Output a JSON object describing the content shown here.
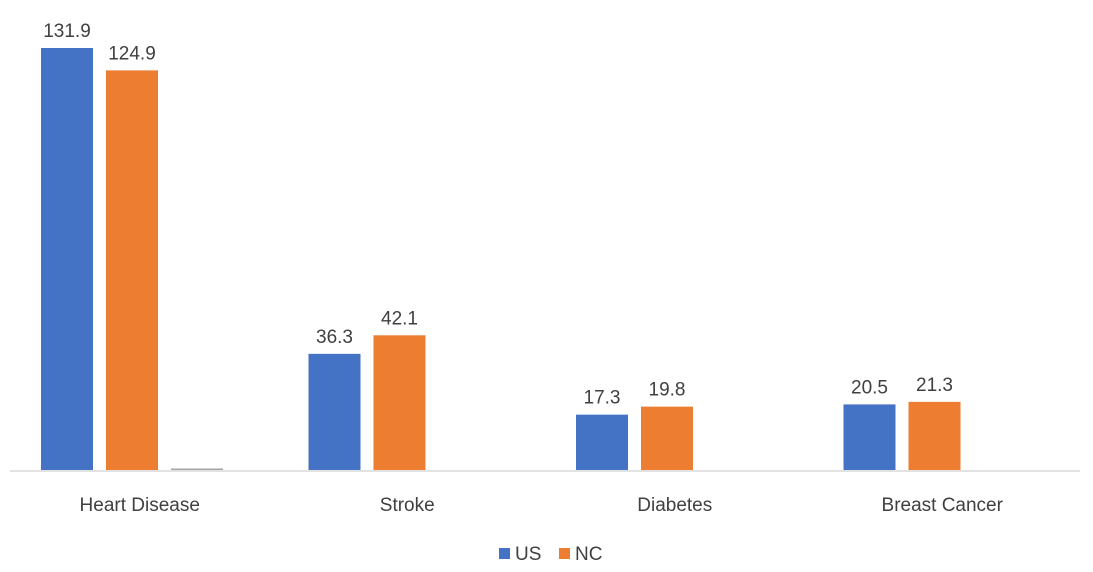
{
  "chart_data": {
    "type": "bar",
    "categories": [
      "Heart Disease",
      "Stroke",
      "Diabetes",
      "Breast Cancer"
    ],
    "series": [
      {
        "name": "US",
        "color": "#4472C4",
        "values": [
          131.9,
          36.3,
          17.3,
          20.5
        ]
      },
      {
        "name": "NC",
        "color": "#ED7D31",
        "values": [
          124.9,
          42.1,
          19.8,
          21.3
        ]
      },
      {
        "color": "#A5A5A5",
        "values": [
          0.4,
          null,
          null,
          null
        ]
      }
    ],
    "title": "",
    "xlabel": "",
    "ylabel": "",
    "ylim": [
      0,
      131.9
    ],
    "grid": false,
    "legend": "bottom"
  }
}
